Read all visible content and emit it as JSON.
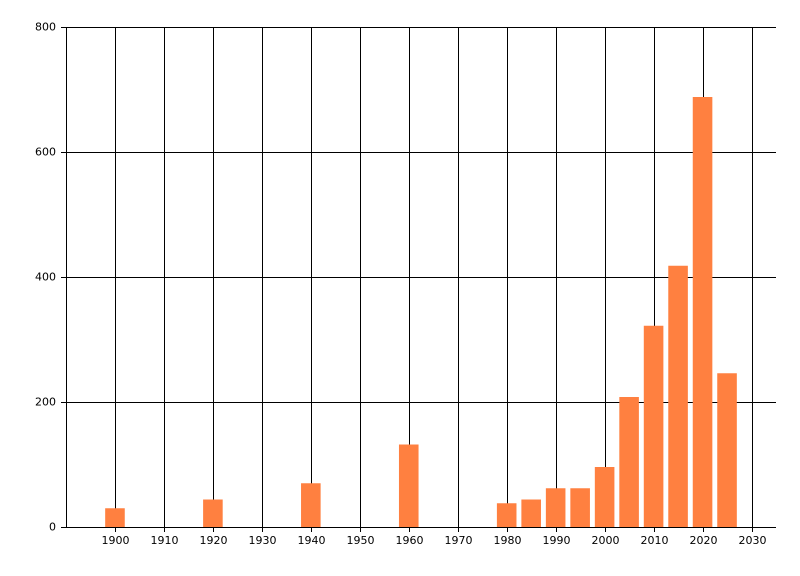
{
  "chart_data": {
    "type": "bar",
    "x": [
      1900,
      1920,
      1940,
      1960,
      1980,
      1985,
      1990,
      1995,
      2000,
      2005,
      2010,
      2015,
      2020,
      2025
    ],
    "values": [
      30,
      44,
      70,
      132,
      38,
      44,
      62,
      62,
      96,
      208,
      322,
      418,
      688,
      246
    ],
    "color": "#ff8040",
    "xlim": [
      1890,
      2035
    ],
    "xticks": [
      1900,
      1910,
      1920,
      1930,
      1940,
      1950,
      1960,
      1970,
      1980,
      1990,
      2000,
      2010,
      2020,
      2030
    ],
    "ylim": [
      0,
      800
    ],
    "yticks": [
      0,
      200,
      400,
      600,
      800
    ],
    "grid": true
  }
}
